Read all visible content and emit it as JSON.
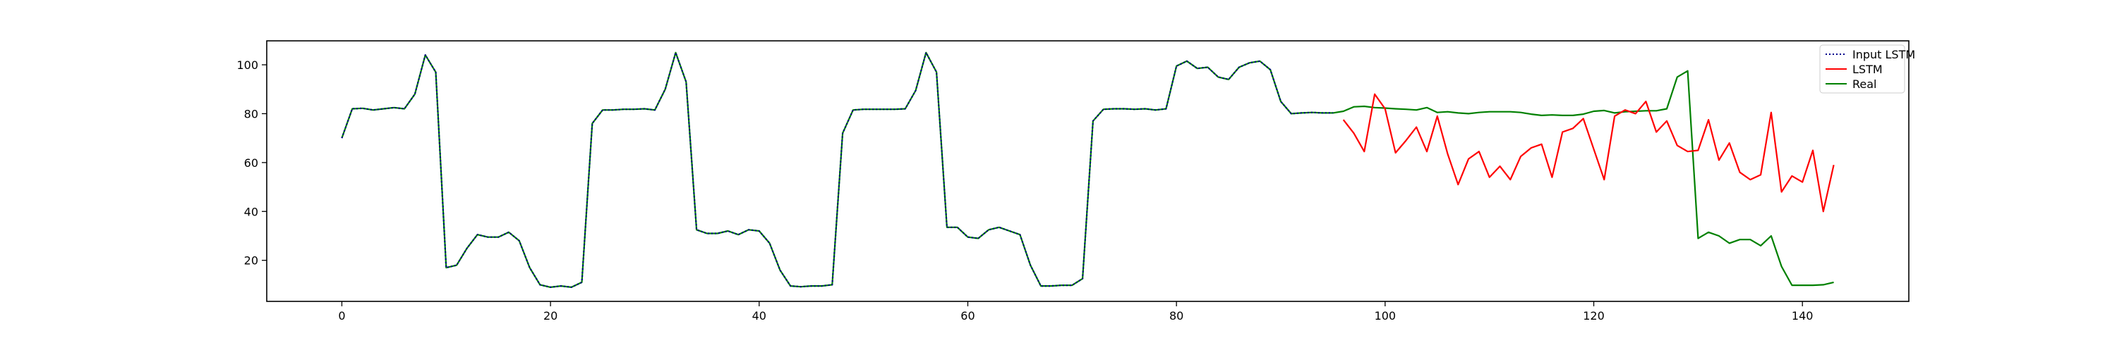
{
  "chart_data": {
    "type": "line",
    "title": "",
    "xlabel": "",
    "ylabel": "",
    "xlim": [
      -7.2,
      150.2
    ],
    "ylim": [
      3.2,
      109.8
    ],
    "xticks": [
      0,
      20,
      40,
      60,
      80,
      100,
      120,
      140
    ],
    "yticks": [
      20,
      40,
      60,
      80,
      100
    ],
    "grid": false,
    "legend_position": "top-right",
    "series": [
      {
        "name": "Input LSTM",
        "color": "#00008b",
        "style": "dotted",
        "x": [
          0,
          1,
          2,
          3,
          4,
          5,
          6,
          7,
          8,
          9,
          10,
          11,
          12,
          13,
          14,
          15,
          16,
          17,
          18,
          19,
          20,
          21,
          22,
          23,
          24,
          25,
          26,
          27,
          28,
          29,
          30,
          31,
          32,
          33,
          34,
          35,
          36,
          37,
          38,
          39,
          40,
          41,
          42,
          43,
          44,
          45,
          46,
          47,
          48,
          49,
          50,
          51,
          52,
          53,
          54,
          55,
          56,
          57,
          58,
          59,
          60,
          61,
          62,
          63,
          64,
          65,
          66,
          67,
          68,
          69,
          70,
          71,
          72,
          73,
          74,
          75,
          76,
          77,
          78,
          79,
          80,
          81,
          82,
          83,
          84,
          85,
          86,
          87,
          88,
          89,
          90,
          91,
          92,
          93,
          94,
          95
        ],
        "y": [
          70,
          82,
          82.2,
          81.5,
          82,
          82.5,
          82,
          88,
          104,
          97,
          17,
          18,
          25,
          30.5,
          29.5,
          29.5,
          31.5,
          28,
          17,
          10,
          9,
          9.5,
          9,
          11,
          76,
          81.5,
          81.5,
          81.8,
          81.8,
          82,
          81.5,
          90,
          105,
          93,
          32.5,
          31,
          31,
          32,
          30.5,
          32.5,
          32,
          27,
          16,
          9.5,
          9.2,
          9.5,
          9.5,
          10,
          72,
          81.5,
          81.8,
          81.8,
          81.8,
          81.8,
          82,
          89.5,
          105,
          97,
          33.5,
          33.5,
          29.5,
          29,
          32.5,
          33.5,
          32,
          30.5,
          18,
          9.5,
          9.5,
          9.8,
          9.8,
          12.5,
          77,
          81.8,
          82,
          82,
          81.8,
          82,
          81.5,
          82,
          99.5,
          101.5,
          98.5,
          99,
          95,
          94,
          99,
          100.8,
          101.5,
          98,
          85,
          80,
          80.3,
          80.5,
          80.3,
          80.3
        ]
      },
      {
        "name": "LSTM",
        "color": "#ff0000",
        "style": "solid",
        "x": [
          96,
          97,
          98,
          99,
          100,
          101,
          102,
          103,
          104,
          105,
          106,
          107,
          108,
          109,
          110,
          111,
          112,
          113,
          114,
          115,
          116,
          117,
          118,
          119,
          120,
          121,
          122,
          123,
          124,
          125,
          126,
          127,
          128,
          129,
          130,
          131,
          132,
          133,
          134,
          135,
          136,
          137,
          138,
          139,
          140,
          141,
          142,
          143
        ],
        "y": [
          77.5,
          72,
          64.5,
          88,
          82,
          64,
          69,
          74.5,
          64.5,
          79,
          63.5,
          51,
          61.5,
          64.5,
          54,
          58.5,
          53,
          62.5,
          66,
          67.5,
          54,
          72.5,
          74,
          78,
          65.5,
          53,
          79,
          81.5,
          80,
          85,
          72.5,
          77,
          67,
          64.5,
          65,
          77.5,
          61,
          68,
          56,
          53,
          55,
          80.5,
          48,
          54.5,
          52,
          65,
          40,
          59
        ]
      },
      {
        "name": "Real",
        "color": "#008000",
        "style": "solid",
        "x": [
          0,
          1,
          2,
          3,
          4,
          5,
          6,
          7,
          8,
          9,
          10,
          11,
          12,
          13,
          14,
          15,
          16,
          17,
          18,
          19,
          20,
          21,
          22,
          23,
          24,
          25,
          26,
          27,
          28,
          29,
          30,
          31,
          32,
          33,
          34,
          35,
          36,
          37,
          38,
          39,
          40,
          41,
          42,
          43,
          44,
          45,
          46,
          47,
          48,
          49,
          50,
          51,
          52,
          53,
          54,
          55,
          56,
          57,
          58,
          59,
          60,
          61,
          62,
          63,
          64,
          65,
          66,
          67,
          68,
          69,
          70,
          71,
          72,
          73,
          74,
          75,
          76,
          77,
          78,
          79,
          80,
          81,
          82,
          83,
          84,
          85,
          86,
          87,
          88,
          89,
          90,
          91,
          92,
          93,
          94,
          95,
          96,
          97,
          98,
          99,
          100,
          101,
          102,
          103,
          104,
          105,
          106,
          107,
          108,
          109,
          110,
          111,
          112,
          113,
          114,
          115,
          116,
          117,
          118,
          119,
          120,
          121,
          122,
          123,
          124,
          125,
          126,
          127,
          128,
          129,
          130,
          131,
          132,
          133,
          134,
          135,
          136,
          137,
          138,
          139,
          140,
          141,
          142,
          143
        ],
        "y": [
          70,
          82,
          82.2,
          81.5,
          82,
          82.5,
          82,
          88,
          104,
          97,
          17,
          18,
          25,
          30.5,
          29.5,
          29.5,
          31.5,
          28,
          17,
          10,
          9,
          9.5,
          9,
          11,
          76,
          81.5,
          81.5,
          81.8,
          81.8,
          82,
          81.5,
          90,
          105,
          93,
          32.5,
          31,
          31,
          32,
          30.5,
          32.5,
          32,
          27,
          16,
          9.5,
          9.2,
          9.5,
          9.5,
          10,
          72,
          81.5,
          81.8,
          81.8,
          81.8,
          81.8,
          82,
          89.5,
          105,
          97,
          33.5,
          33.5,
          29.5,
          29,
          32.5,
          33.5,
          32,
          30.5,
          18,
          9.5,
          9.5,
          9.8,
          9.8,
          12.5,
          77,
          81.8,
          82,
          82,
          81.8,
          82,
          81.5,
          82,
          99.5,
          101.5,
          98.5,
          99,
          95,
          94,
          99,
          100.8,
          101.5,
          98,
          85,
          80,
          80.3,
          80.5,
          80.3,
          80.3,
          81,
          82.8,
          83,
          82.5,
          82.3,
          82,
          81.8,
          81.5,
          82.5,
          80.5,
          80.8,
          80.3,
          80,
          80.5,
          80.8,
          80.8,
          80.8,
          80.5,
          79.8,
          79.3,
          79.5,
          79.3,
          79.3,
          79.8,
          81,
          81.3,
          80.3,
          80.8,
          81,
          81.2,
          81.2,
          82,
          95,
          97.5,
          29,
          31.5,
          30,
          27,
          28.5,
          28.5,
          26,
          30,
          17.5,
          9.8,
          9.8,
          9.8,
          10,
          11
        ]
      }
    ]
  }
}
